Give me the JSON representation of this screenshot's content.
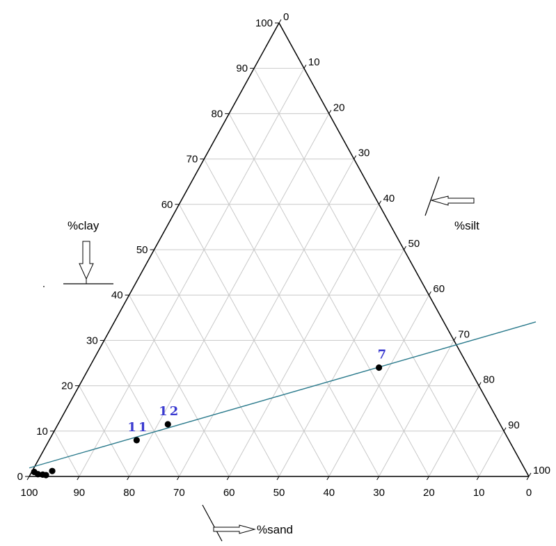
{
  "chart_data": {
    "type": "scatter",
    "subtype": "ternary",
    "axes": {
      "clay": {
        "label": "%clay",
        "ticks": [
          "0",
          "10",
          "20",
          "30",
          "40",
          "50",
          "60",
          "70",
          "80",
          "90",
          "100"
        ]
      },
      "silt": {
        "label": "%silt",
        "ticks": [
          "0",
          "10",
          "20",
          "30",
          "40",
          "50",
          "60",
          "70",
          "80",
          "90",
          "100"
        ]
      },
      "sand": {
        "label": "%sand",
        "ticks": [
          "100",
          "90",
          "80",
          "70",
          "60",
          "50",
          "40",
          "30",
          "20",
          "10",
          "0"
        ]
      }
    },
    "grid": true,
    "grid_step": 10,
    "points": [
      {
        "label": "7",
        "clay": 24,
        "silt": 58,
        "sand": 18
      },
      {
        "label": "12",
        "clay": 11.5,
        "silt": 22,
        "sand": 66.5
      },
      {
        "label": "11",
        "clay": 8,
        "silt": 17.5,
        "sand": 74.5
      },
      {
        "label": "",
        "clay": 1.2,
        "silt": 4,
        "sand": 94.8
      },
      {
        "label": "",
        "clay": 1,
        "silt": 0.5,
        "sand": 98.5
      },
      {
        "label": "",
        "clay": 0.5,
        "silt": 1.5,
        "sand": 98
      },
      {
        "label": "",
        "clay": 0.4,
        "silt": 2.5,
        "sand": 97.1
      },
      {
        "label": "",
        "clay": 0.3,
        "silt": 3.2,
        "sand": 96.5
      }
    ],
    "trend_line": {
      "color": "#2a7a8c"
    },
    "colors": {
      "grid": "#c8c8c8",
      "frame": "#000000",
      "point": "#000000",
      "point_label": "#3a3ad0"
    }
  }
}
